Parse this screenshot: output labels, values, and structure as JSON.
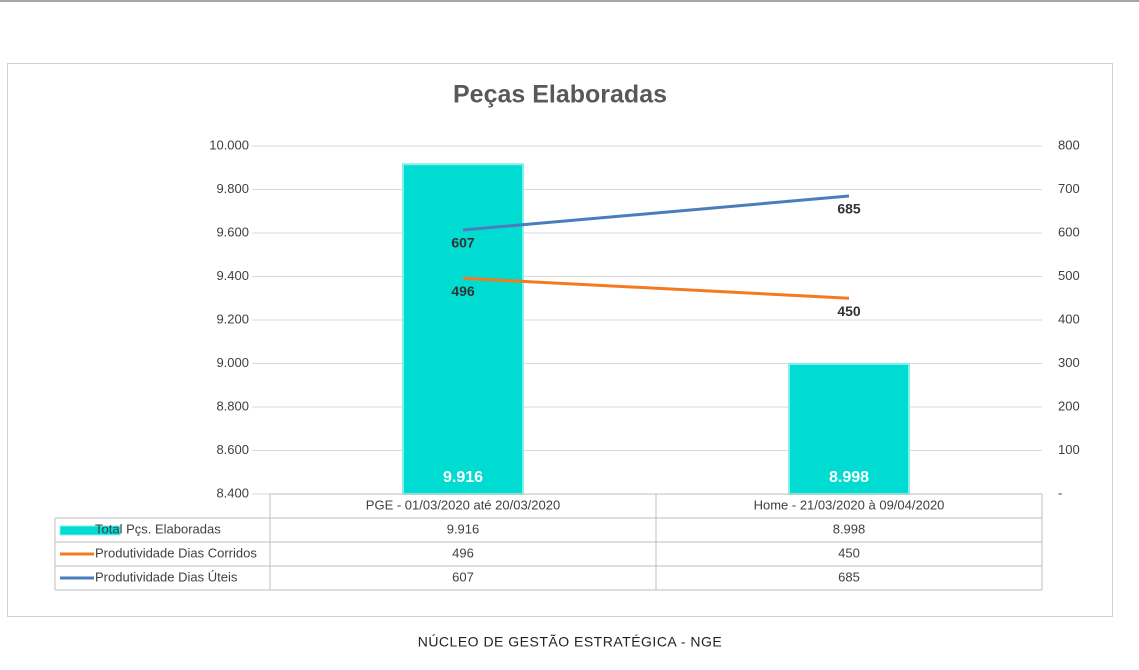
{
  "chart_data": {
    "type": "bar",
    "title": "Peças Elaboradas",
    "categories": [
      "PGE - 01/03/2020 até 20/03/2020",
      "Home - 21/03/2020 à 09/04/2020"
    ],
    "series": [
      {
        "name": "Total Pçs. Elaboradas",
        "type": "bar",
        "color": "#00dcd2",
        "values": [
          9916,
          8998
        ],
        "value_labels": [
          "9.916",
          "8.998"
        ]
      },
      {
        "name": "Produtividade Dias Corridos",
        "type": "line",
        "color": "#f47920",
        "axis": "y2",
        "values": [
          496,
          450
        ]
      },
      {
        "name": "Produtividade Dias Úteis",
        "type": "line",
        "color": "#4a7ebb",
        "axis": "y2",
        "values": [
          607,
          685
        ]
      }
    ],
    "ylim": [
      8400,
      10000
    ],
    "yticks": [
      {
        "value": 8400,
        "label": "8.400"
      },
      {
        "value": 8600,
        "label": "8.600"
      },
      {
        "value": 8800,
        "label": "8.800"
      },
      {
        "value": 9000,
        "label": "9.000"
      },
      {
        "value": 9200,
        "label": "9.200"
      },
      {
        "value": 9400,
        "label": "9.400"
      },
      {
        "value": 9600,
        "label": "9.600"
      },
      {
        "value": 9800,
        "label": "9.800"
      },
      {
        "value": 10000,
        "label": "10.000"
      }
    ],
    "y2lim": [
      0,
      800
    ],
    "y2ticks": [
      {
        "value": 0,
        "label": "-"
      },
      100,
      200,
      300,
      400,
      500,
      600,
      700,
      800
    ],
    "grid": true,
    "legend": "data-table"
  },
  "footer": "NÚCLEO DE GESTÃO ESTRATÉGICA - NGE"
}
